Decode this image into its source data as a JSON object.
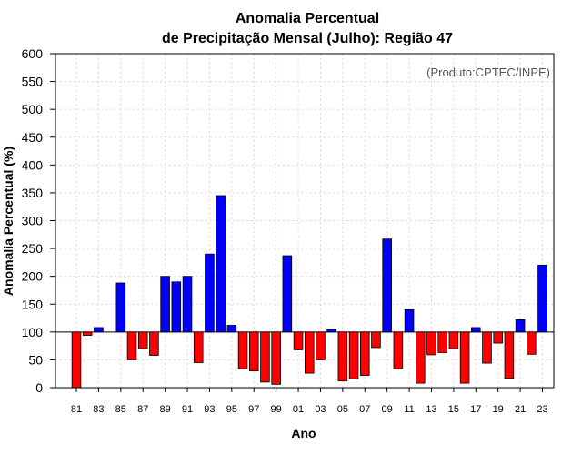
{
  "chart_data": {
    "type": "bar",
    "title_line1": "Anomalia Percentual",
    "title_line2": "de Precipitação Mensal (Julho): Região 47",
    "xlabel": "Ano",
    "ylabel": "Anomalia Percentual (%)",
    "annotation": "(Produto:CPTEC/INPE)",
    "ylim": [
      0,
      600
    ],
    "yticks": [
      0,
      50,
      100,
      150,
      200,
      250,
      300,
      350,
      400,
      450,
      500,
      550,
      600
    ],
    "baseline": 100,
    "grid": true,
    "categories": [
      "81",
      "82",
      "83",
      "84",
      "85",
      "86",
      "87",
      "88",
      "89",
      "90",
      "91",
      "92",
      "93",
      "94",
      "95",
      "96",
      "97",
      "98",
      "99",
      "00",
      "01",
      "02",
      "03",
      "04",
      "05",
      "06",
      "07",
      "08",
      "09",
      "10",
      "11",
      "12",
      "13",
      "14",
      "15",
      "16",
      "17",
      "18",
      "19",
      "20",
      "21",
      "22",
      "23"
    ],
    "tick_labels": [
      "81",
      "83",
      "85",
      "87",
      "89",
      "91",
      "93",
      "95",
      "97",
      "99",
      "01",
      "03",
      "05",
      "07",
      "09",
      "11",
      "13",
      "15",
      "17",
      "19",
      "21",
      "23"
    ],
    "values": [
      0,
      94,
      108,
      100,
      188,
      50,
      70,
      58,
      200,
      190,
      200,
      45,
      240,
      345,
      112,
      34,
      30,
      10,
      6,
      237,
      68,
      26,
      50,
      105,
      12,
      16,
      22,
      72,
      267,
      34,
      140,
      8,
      59,
      63,
      70,
      8,
      108,
      44,
      80,
      17,
      122,
      60,
      220
    ],
    "colors": {
      "above": "#0000ff",
      "below": "#ff0000"
    }
  }
}
